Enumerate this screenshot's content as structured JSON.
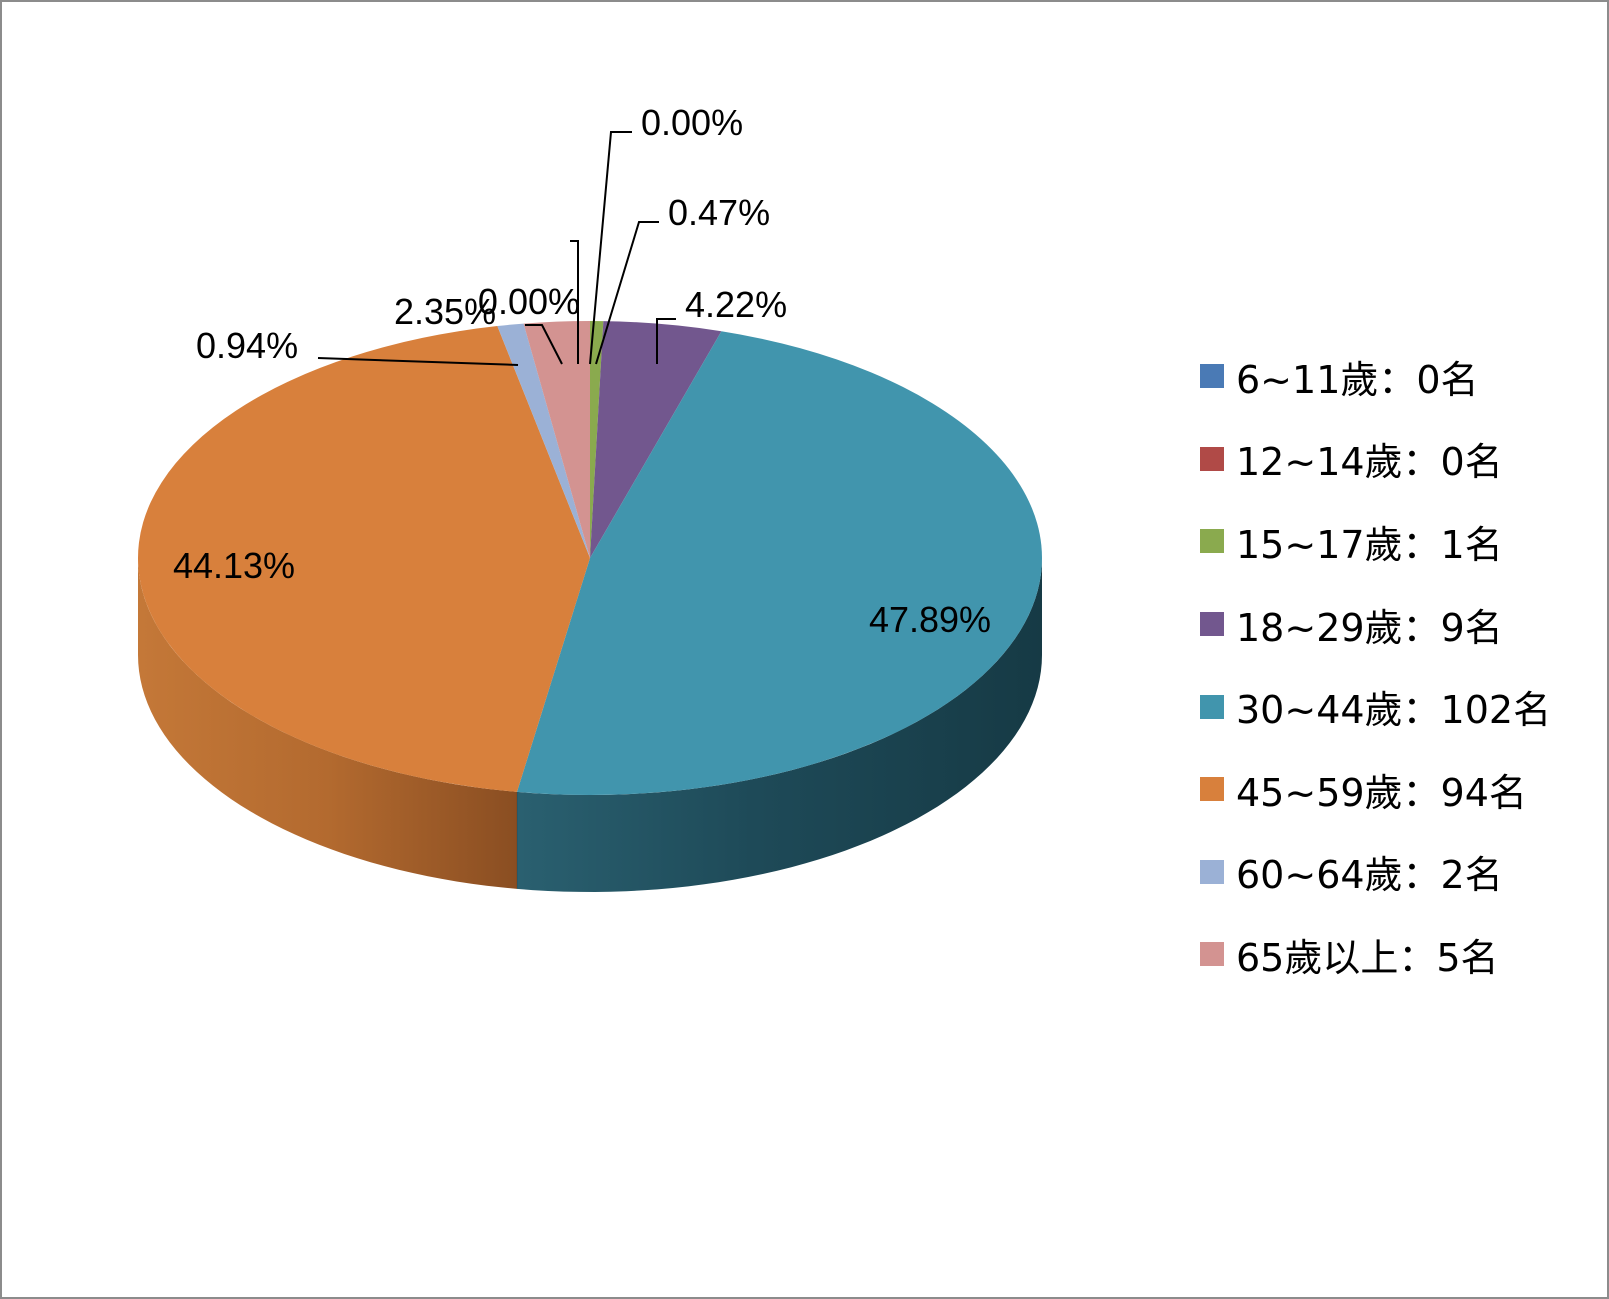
{
  "chart_data": {
    "type": "pie",
    "style": "3d",
    "legend_position": "right",
    "slices": [
      {
        "label": "6~11歲：0名",
        "value": 0,
        "percent_label": "0.00%",
        "color": "#4a7ab5"
      },
      {
        "label": "12~14歲：0名",
        "value": 0,
        "percent_label": "0.00%",
        "color": "#b04a47"
      },
      {
        "label": "15~17歲：1名",
        "value": 1,
        "percent_label": "0.47%",
        "color": "#8aaa4e"
      },
      {
        "label": "18~29歲：9名",
        "value": 9,
        "percent_label": "4.22%",
        "color": "#72578e"
      },
      {
        "label": "30~44歲：102名",
        "value": 102,
        "percent_label": "47.89%",
        "color": "#4195ad"
      },
      {
        "label": "45~59歲：94名",
        "value": 94,
        "percent_label": "44.13%",
        "color": "#d8803c"
      },
      {
        "label": "60~64歲：2名",
        "value": 2,
        "percent_label": "0.94%",
        "color": "#9bb1d6"
      },
      {
        "label": "65歲以上：5名",
        "value": 5,
        "percent_label": "2.35%",
        "color": "#d39391"
      }
    ]
  }
}
